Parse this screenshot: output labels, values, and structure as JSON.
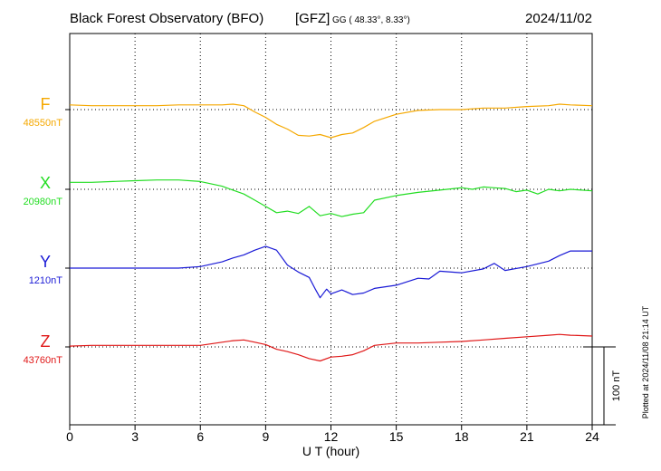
{
  "header": {
    "station": "Black Forest Observatory (BFO)",
    "source": "[GFZ]",
    "coords": "GG ( 48.33°,   8.33°)",
    "date": "2024/11/02"
  },
  "plotted_note": "Plotted at 2024/11/08 21:14 UT",
  "chart_data": {
    "type": "line",
    "title": "Black Forest Observatory (BFO)",
    "xlabel": "U T (hour)",
    "ylabel": "",
    "xlim": [
      0,
      24
    ],
    "x_ticks": [
      0,
      3,
      6,
      9,
      12,
      15,
      18,
      21,
      24
    ],
    "x_tick_labels": [
      "0",
      "3",
      "6",
      "9",
      "12",
      "15",
      "18",
      "21",
      "24"
    ],
    "grid": true,
    "scale_bar": {
      "value": 100,
      "label": "100 nT"
    },
    "series": [
      {
        "name": "F",
        "baseline_label": "48550nT",
        "baseline": 48550,
        "color": "#f5a800",
        "x": [
          0,
          1,
          2,
          3,
          4,
          5,
          6,
          7,
          7.5,
          8,
          8.5,
          9,
          9.5,
          10,
          10.5,
          11,
          11.5,
          12,
          12.5,
          13,
          13.5,
          14,
          15,
          16,
          17,
          18,
          19,
          20,
          21,
          22,
          22.5,
          23,
          24
        ],
        "values": [
          48556,
          48555,
          48555,
          48555,
          48555,
          48556,
          48556,
          48556,
          48557,
          48555,
          48547,
          48540,
          48531,
          48525,
          48517,
          48516,
          48518,
          48514,
          48518,
          48520,
          48527,
          48535,
          48544,
          48549,
          48550,
          48550,
          48552,
          48552,
          48554,
          48555,
          48557,
          48556,
          48555
        ]
      },
      {
        "name": "X",
        "baseline_label": "20980nT",
        "baseline": 20980,
        "color": "#22dd22",
        "x": [
          0,
          1,
          2,
          3,
          4,
          5,
          6,
          7,
          8,
          8.5,
          9,
          9.5,
          10,
          10.5,
          11,
          11.5,
          12,
          12.5,
          13,
          13.5,
          14,
          15,
          16,
          17,
          18,
          18.5,
          19,
          19.5,
          20,
          20.5,
          21,
          21.5,
          22,
          22.5,
          23,
          24
        ],
        "values": [
          20989,
          20989,
          20990,
          20991,
          20992,
          20992,
          20990,
          20984,
          20974,
          20966,
          20958,
          20950,
          20952,
          20949,
          20958,
          20946,
          20949,
          20945,
          20948,
          20950,
          20966,
          20972,
          20976,
          20979,
          20982,
          20980,
          20983,
          20982,
          20981,
          20977,
          20979,
          20974,
          20980,
          20978,
          20980,
          20978
        ]
      },
      {
        "name": "Y",
        "baseline_label": "1210nT",
        "baseline": 1210,
        "color": "#1a1ad6",
        "x": [
          0,
          1,
          2,
          3,
          4,
          5,
          6,
          7,
          7.5,
          8,
          8.5,
          9,
          9.5,
          10,
          10.5,
          11,
          11.3,
          11.5,
          11.8,
          12,
          12.5,
          13,
          13.5,
          14,
          15,
          16,
          16.5,
          17,
          18,
          19,
          19.5,
          20,
          21,
          22,
          22.5,
          23,
          24
        ],
        "values": [
          1210,
          1210,
          1210,
          1210,
          1210,
          1210,
          1212,
          1218,
          1223,
          1227,
          1233,
          1238,
          1233,
          1214,
          1205,
          1198,
          1182,
          1172,
          1183,
          1177,
          1182,
          1176,
          1178,
          1184,
          1188,
          1197,
          1196,
          1206,
          1204,
          1209,
          1216,
          1207,
          1212,
          1219,
          1226,
          1232,
          1232
        ]
      },
      {
        "name": "Z",
        "baseline_label": "43760nT",
        "baseline": 43760,
        "color": "#e01818",
        "x": [
          0,
          1,
          2,
          3,
          4,
          5,
          6,
          7,
          7.5,
          8,
          8.5,
          9,
          9.5,
          10,
          10.5,
          11,
          11.5,
          12,
          12.5,
          13,
          13.5,
          14,
          15,
          16,
          17,
          18,
          19,
          20,
          21,
          22,
          22.5,
          23,
          24
        ],
        "values": [
          43761,
          43762,
          43762,
          43762,
          43762,
          43762,
          43762,
          43766,
          43768,
          43769,
          43766,
          43763,
          43757,
          43754,
          43750,
          43745,
          43742,
          43747,
          43748,
          43750,
          43755,
          43762,
          43765,
          43765,
          43766,
          43767,
          43769,
          43771,
          43773,
          43775,
          43776,
          43775,
          43774
        ]
      }
    ]
  }
}
